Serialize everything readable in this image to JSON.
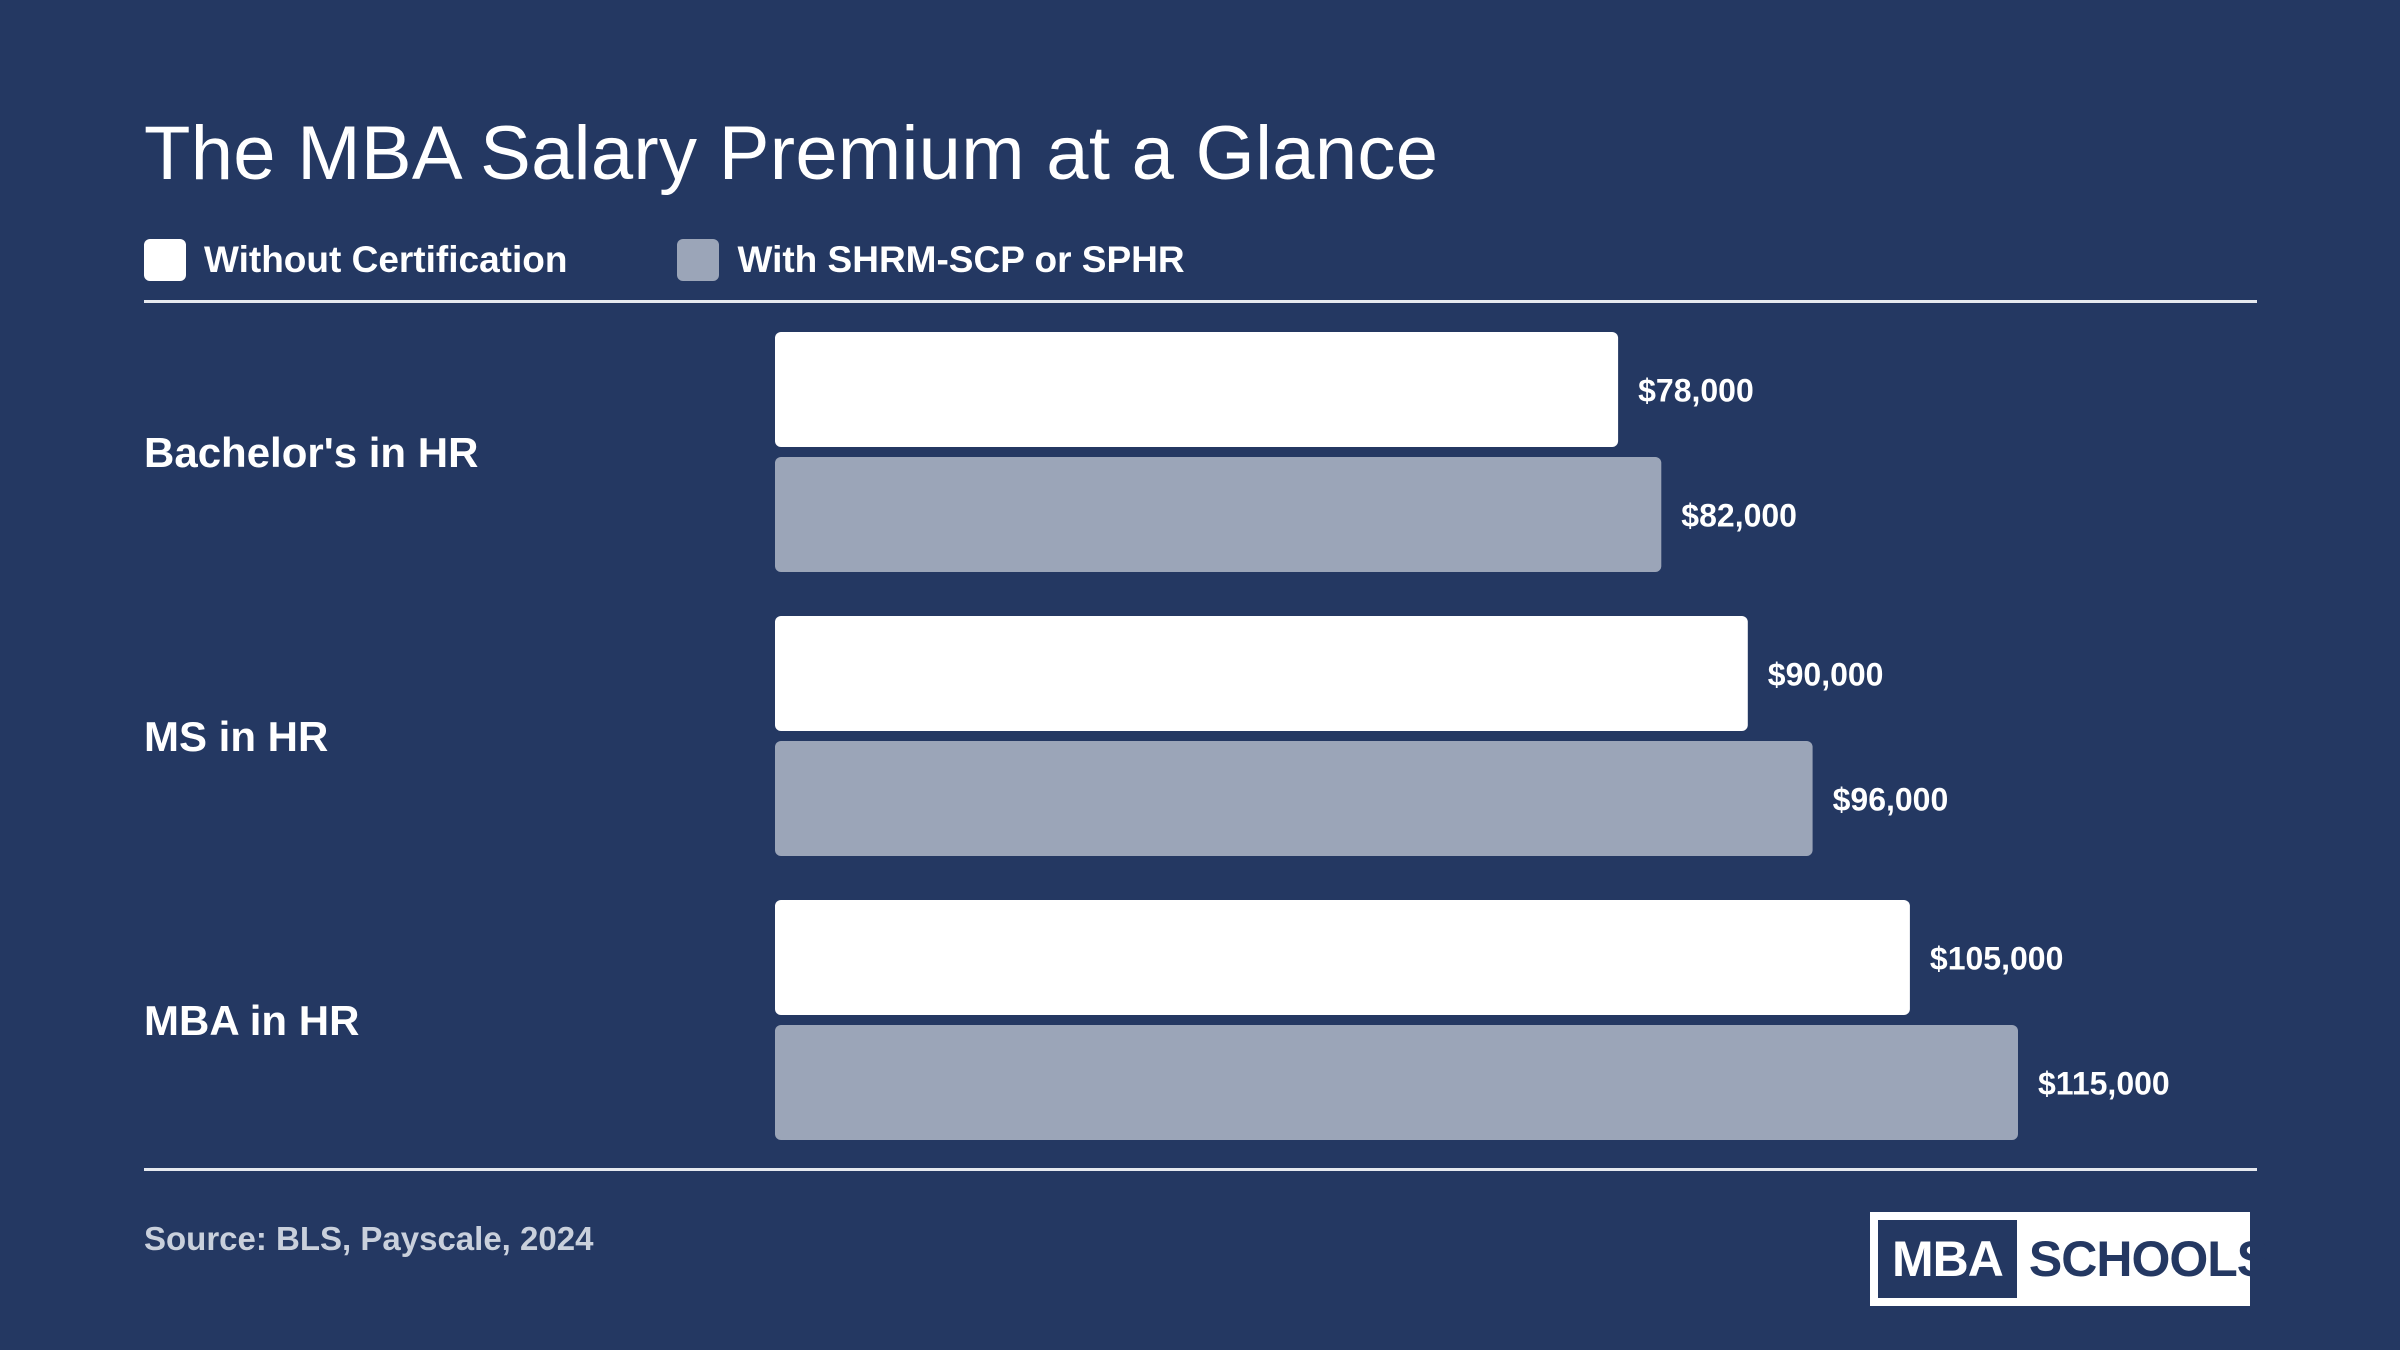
{
  "header": {
    "title": "The MBA Salary Premium at a Glance"
  },
  "legend": {
    "items": [
      {
        "label": "Without Certification",
        "color": "#ffffff"
      },
      {
        "label": "With SHRM-SCP or SPHR",
        "color": "#9ba5b8"
      }
    ]
  },
  "footer": {
    "source": "Source: BLS, Payscale, 2024",
    "logo_left": "MBA",
    "logo_right": "SCHOOLS"
  },
  "colors": {
    "background": "#243862",
    "bar_without": "#ffffff",
    "bar_with": "#9ba5b8",
    "text": "#ffffff"
  },
  "chart_data": {
    "type": "bar",
    "orientation": "horizontal",
    "title": "The MBA Salary Premium at a Glance",
    "categories": [
      "Bachelor's in HR",
      "MS in HR",
      "MBA in HR"
    ],
    "series": [
      {
        "name": "Without Certification",
        "values": [
          78000,
          90000,
          105000
        ],
        "labels": [
          "$78,000",
          "$90,000",
          "$105,000"
        ]
      },
      {
        "name": "With SHRM-SCP or SPHR",
        "values": [
          82000,
          96000,
          115000
        ],
        "labels": [
          "$82,000",
          "$96,000",
          "$115,000"
        ]
      }
    ],
    "xlim": [
      0,
      120000
    ],
    "grid": false,
    "legend_position": "top-left"
  }
}
